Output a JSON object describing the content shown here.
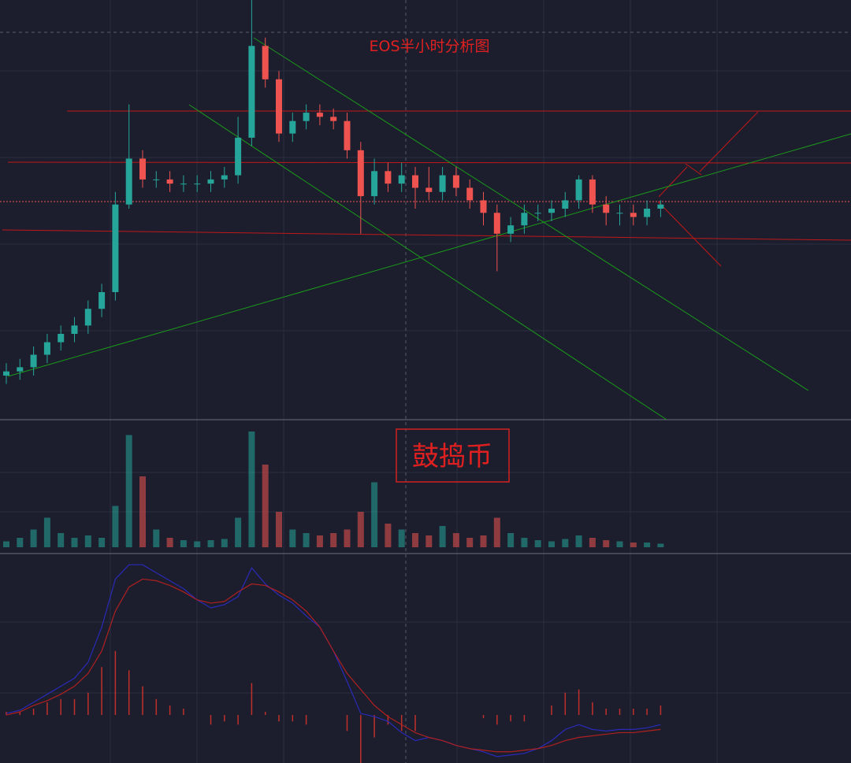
{
  "chart_data": {
    "type": "candlestick",
    "title": "EOS半小时分析图",
    "annotation": "鼓捣币",
    "up_color": "#26a69a",
    "down_color": "#ef5350",
    "open": [
      10,
      11,
      12,
      15,
      18,
      20,
      22,
      26,
      30,
      51,
      62,
      57,
      57,
      56,
      56,
      56,
      57,
      58,
      67,
      89,
      81,
      68,
      71,
      73,
      72,
      71,
      64,
      53,
      59,
      56,
      58,
      55,
      54,
      58,
      55,
      52,
      49,
      44,
      46,
      49,
      49,
      50,
      52,
      57,
      51,
      49,
      49,
      48,
      50
    ],
    "high": [
      13,
      14,
      17,
      20,
      22,
      24,
      28,
      32,
      54,
      75,
      64,
      59,
      59,
      58,
      58,
      59,
      60,
      72,
      100,
      91,
      83,
      73,
      75,
      75,
      74,
      73,
      66,
      62,
      61,
      61,
      60,
      60,
      60,
      60,
      57,
      54,
      51,
      48,
      51,
      51,
      52,
      54,
      58,
      58,
      53,
      51,
      51,
      52,
      52
    ],
    "low": [
      8,
      9,
      10,
      13,
      16,
      18,
      20,
      24,
      28,
      50,
      55,
      55,
      54,
      54,
      54,
      54,
      55,
      56,
      65,
      79,
      66,
      66,
      69,
      70,
      69,
      62,
      44,
      51,
      54,
      54,
      50,
      52,
      52,
      53,
      50,
      46,
      35,
      42,
      44,
      47,
      47,
      48,
      50,
      49,
      46,
      46,
      46,
      46,
      48
    ],
    "close": [
      11,
      12,
      15,
      18,
      20,
      22,
      26,
      30,
      51,
      62,
      57,
      57,
      56,
      56,
      56,
      57,
      58,
      67,
      89,
      81,
      68,
      71,
      73,
      72,
      71,
      64,
      53,
      59,
      56,
      58,
      55,
      54,
      58,
      55,
      52,
      49,
      44,
      46,
      49,
      49,
      50,
      52,
      57,
      51,
      49,
      49,
      48,
      50,
      51
    ],
    "ylim": [
      0,
      100
    ],
    "volume": {
      "values": [
        5,
        8,
        15,
        25,
        12,
        8,
        10,
        8,
        35,
        95,
        60,
        15,
        8,
        6,
        5,
        6,
        7,
        25,
        98,
        70,
        30,
        15,
        12,
        10,
        12,
        15,
        30,
        55,
        20,
        15,
        12,
        10,
        18,
        12,
        8,
        10,
        25,
        12,
        8,
        6,
        5,
        7,
        10,
        8,
        6,
        5,
        4,
        4,
        3
      ],
      "ylim": [
        0,
        100
      ]
    },
    "macd": {
      "dif": [
        1,
        3,
        8,
        13,
        18,
        23,
        33,
        55,
        85,
        94,
        94,
        89,
        84,
        79,
        72,
        67,
        69,
        74,
        92,
        82,
        75,
        70,
        62,
        55,
        40,
        21,
        1,
        -1,
        -4,
        -11,
        -16,
        -14,
        -16,
        -19,
        -21,
        -23,
        -26,
        -25,
        -24,
        -21,
        -16,
        -9,
        -6,
        -9,
        -10,
        -9,
        -9,
        -8,
        -6
      ],
      "dea": [
        0,
        2,
        6,
        9,
        13,
        18,
        26,
        40,
        65,
        80,
        85,
        84,
        81,
        77,
        72,
        70,
        71,
        77,
        82,
        81,
        77,
        72,
        65,
        55,
        40,
        26,
        16,
        6,
        -1,
        -6,
        -11,
        -14,
        -16,
        -19,
        -21,
        -22,
        -23,
        -23,
        -22,
        -21,
        -19,
        -16,
        -14,
        -13,
        -12,
        -11,
        -11,
        -10,
        -9
      ],
      "hist": [
        2,
        2,
        4,
        8,
        10,
        10,
        14,
        30,
        40,
        28,
        18,
        10,
        6,
        4,
        0,
        -6,
        -4,
        -6,
        20,
        2,
        -4,
        -4,
        -6,
        0,
        0,
        -10,
        -30,
        -14,
        -6,
        -10,
        -10,
        0,
        0,
        0,
        0,
        -2,
        -6,
        -4,
        -4,
        0,
        6,
        14,
        16,
        8,
        4,
        4,
        4,
        4,
        6
      ],
      "dif_color": "#2a2ab8",
      "dea_color": "#b02020",
      "hist_color": "#c0302a",
      "ylim": [
        -30,
        100
      ]
    }
  }
}
